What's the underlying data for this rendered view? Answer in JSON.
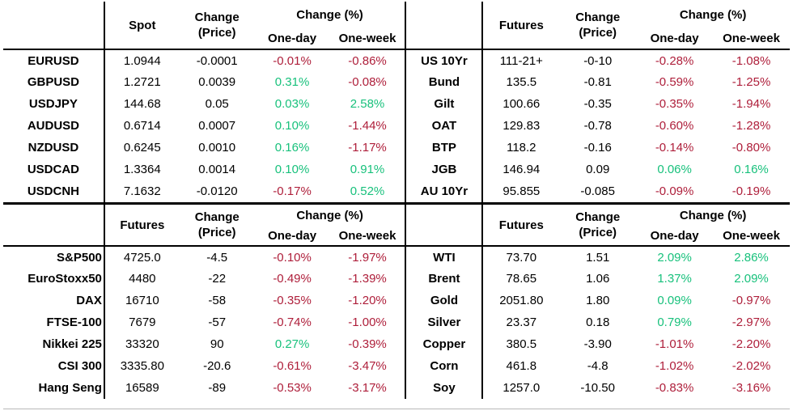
{
  "colors": {
    "positive": "#18c17c",
    "negative": "#ae1e3a",
    "text": "#000000",
    "rule": "#b9b9b9"
  },
  "chart_data": [
    {
      "type": "table",
      "id": "fx",
      "value_label": "Spot",
      "change_label_line1": "Change",
      "change_label_line2": "(Price)",
      "pct_label": "Change (%)",
      "one_day_label": "One-day",
      "one_week_label": "One-week",
      "rows": [
        {
          "label": "EURUSD",
          "value": "1.0944",
          "change": "-0.0001",
          "one_day": "-0.01%",
          "one_week": "-0.86%"
        },
        {
          "label": "GBPUSD",
          "value": "1.2721",
          "change": "0.0039",
          "one_day": "0.31%",
          "one_week": "-0.08%"
        },
        {
          "label": "USDJPY",
          "value": "144.68",
          "change": "0.05",
          "one_day": "0.03%",
          "one_week": "2.58%"
        },
        {
          "label": "AUDUSD",
          "value": "0.6714",
          "change": "0.0007",
          "one_day": "0.10%",
          "one_week": "-1.44%"
        },
        {
          "label": "NZDUSD",
          "value": "0.6245",
          "change": "0.0010",
          "one_day": "0.16%",
          "one_week": "-1.17%"
        },
        {
          "label": "USDCAD",
          "value": "1.3364",
          "change": "0.0014",
          "one_day": "0.10%",
          "one_week": "0.91%"
        },
        {
          "label": "USDCNH",
          "value": "7.1632",
          "change": "-0.0120",
          "one_day": "-0.17%",
          "one_week": "0.52%"
        }
      ]
    },
    {
      "type": "table",
      "id": "bonds",
      "value_label": "Futures",
      "change_label_line1": "Change",
      "change_label_line2": "(Price)",
      "pct_label": "Change (%)",
      "one_day_label": "One-day",
      "one_week_label": "One-week",
      "rows": [
        {
          "label": "US 10Yr",
          "value": "111-21+",
          "change": "-0-10",
          "one_day": "-0.28%",
          "one_week": "-1.08%"
        },
        {
          "label": "Bund",
          "value": "135.5",
          "change": "-0.81",
          "one_day": "-0.59%",
          "one_week": "-1.25%"
        },
        {
          "label": "Gilt",
          "value": "100.66",
          "change": "-0.35",
          "one_day": "-0.35%",
          "one_week": "-1.94%"
        },
        {
          "label": "OAT",
          "value": "129.83",
          "change": "-0.78",
          "one_day": "-0.60%",
          "one_week": "-1.28%"
        },
        {
          "label": "BTP",
          "value": "118.2",
          "change": "-0.16",
          "one_day": "-0.14%",
          "one_week": "-0.80%"
        },
        {
          "label": "JGB",
          "value": "146.94",
          "change": "0.09",
          "one_day": "0.06%",
          "one_week": "0.16%"
        },
        {
          "label": "AU 10Yr",
          "value": "95.855",
          "change": "-0.085",
          "one_day": "-0.09%",
          "one_week": "-0.19%"
        }
      ]
    },
    {
      "type": "table",
      "id": "equities",
      "value_label": "Futures",
      "change_label_line1": "Change",
      "change_label_line2": "(Price)",
      "pct_label": "Change (%)",
      "one_day_label": "One-day",
      "one_week_label": "One-week",
      "rows": [
        {
          "label": "S&P500",
          "value": "4725.0",
          "change": "-4.5",
          "one_day": "-0.10%",
          "one_week": "-1.97%"
        },
        {
          "label": "EuroStoxx50",
          "value": "4480",
          "change": "-22",
          "one_day": "-0.49%",
          "one_week": "-1.39%"
        },
        {
          "label": "DAX",
          "value": "16710",
          "change": "-58",
          "one_day": "-0.35%",
          "one_week": "-1.20%"
        },
        {
          "label": "FTSE-100",
          "value": "7679",
          "change": "-57",
          "one_day": "-0.74%",
          "one_week": "-1.00%"
        },
        {
          "label": "Nikkei 225",
          "value": "33320",
          "change": "90",
          "one_day": "0.27%",
          "one_week": "-0.39%"
        },
        {
          "label": "CSI 300",
          "value": "3335.80",
          "change": "-20.6",
          "one_day": "-0.61%",
          "one_week": "-3.47%"
        },
        {
          "label": "Hang Seng",
          "value": "16589",
          "change": "-89",
          "one_day": "-0.53%",
          "one_week": "-3.17%"
        }
      ]
    },
    {
      "type": "table",
      "id": "commodities",
      "value_label": "Futures",
      "change_label_line1": "Change",
      "change_label_line2": "(Price)",
      "pct_label": "Change (%)",
      "one_day_label": "One-day",
      "one_week_label": "One-week",
      "rows": [
        {
          "label": "WTI",
          "value": "73.70",
          "change": "1.51",
          "one_day": "2.09%",
          "one_week": "2.86%"
        },
        {
          "label": "Brent",
          "value": "78.65",
          "change": "1.06",
          "one_day": "1.37%",
          "one_week": "2.09%"
        },
        {
          "label": "Gold",
          "value": "2051.80",
          "change": "1.80",
          "one_day": "0.09%",
          "one_week": "-0.97%"
        },
        {
          "label": "Silver",
          "value": "23.37",
          "change": "0.18",
          "one_day": "0.79%",
          "one_week": "-2.97%"
        },
        {
          "label": "Copper",
          "value": "380.5",
          "change": "-3.90",
          "one_day": "-1.01%",
          "one_week": "-2.20%"
        },
        {
          "label": "Corn",
          "value": "461.8",
          "change": "-4.8",
          "one_day": "-1.02%",
          "one_week": "-2.02%"
        },
        {
          "label": "Soy",
          "value": "1257.0",
          "change": "-10.50",
          "one_day": "-0.83%",
          "one_week": "-3.16%"
        }
      ]
    }
  ]
}
